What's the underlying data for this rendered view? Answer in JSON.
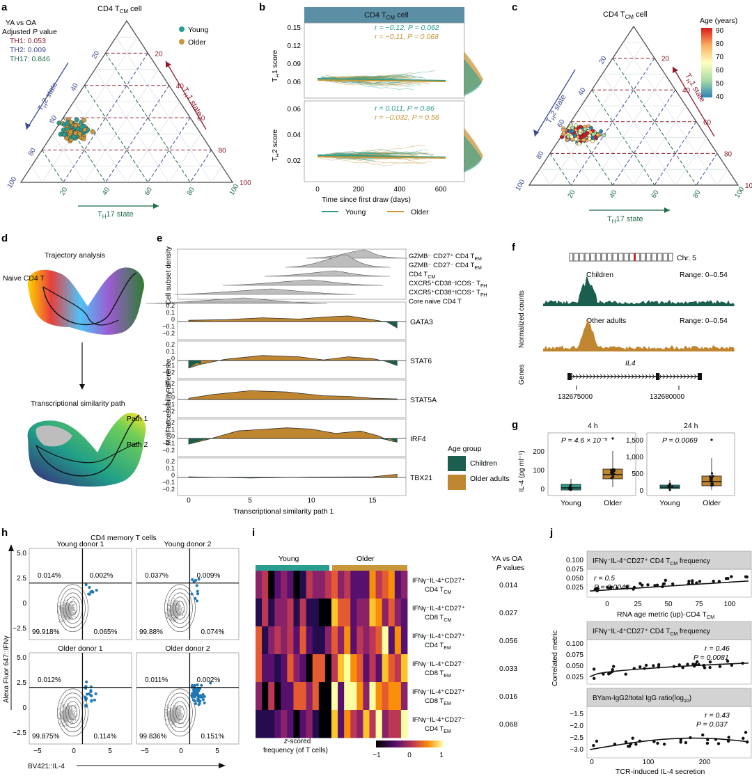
{
  "panel_letters": [
    "a",
    "b",
    "c",
    "d",
    "e",
    "f",
    "g",
    "h",
    "i",
    "j"
  ],
  "colors": {
    "young": "#2a9d8f",
    "older": "#c8973a",
    "th1": "#8b1a2b",
    "th2": "#3b4a8f",
    "th17": "#1f6b4a",
    "children": "#1a5e50",
    "adults": "#c0862f",
    "blue_dot": "#1f77b4",
    "header": "#5b8fa6",
    "strip": "#d3d3d3"
  },
  "a": {
    "title": "CD4 T",
    "title_sub": "CM",
    "title_tail": " cell",
    "stats_title": "YA vs OA",
    "stats_sub": "Adjusted P value",
    "th1": "H1: 0.053",
    "th2": "H2: 0.009",
    "th17": "H17: 0.846",
    "legend": [
      "Young",
      "Older"
    ],
    "th1_axis": [
      "20",
      "40",
      "60",
      "80",
      "100"
    ],
    "th2_axis": [
      "20",
      "40",
      "60",
      "80",
      "100"
    ],
    "th17_axis": [
      "20",
      "40",
      "60",
      "80",
      "100"
    ],
    "th1_label": "T",
    "th1_label_sub": "H",
    "th1_label_tail": "1 state",
    "th2_label": "T",
    "th2_label_sub": "H",
    "th2_label_tail": "2 state",
    "th17_label": "T",
    "th17_label_sub": "H",
    "th17_label_tail": "17 state"
  },
  "b": {
    "header": "CD4 T",
    "header_sub": "CM",
    "header_tail": " cell",
    "y1_label": "T",
    "y1_sub": "H",
    "y1_tail": "1 score",
    "y2_label": "T",
    "y2_sub": "H",
    "y2_tail": "2 score",
    "y1_ticks": [
      "0.15",
      "0.12",
      "0.09",
      "0.06"
    ],
    "y2_ticks": [
      "0.06",
      "0.04",
      "0.02"
    ],
    "x_ticks": [
      "0",
      "200",
      "400",
      "600"
    ],
    "xlabel": "Time since first draw (days)",
    "stats1": [
      "r = −0.12, P = 0.062",
      "r = −0.11, P = 0.068"
    ],
    "stats2": [
      "r = 0.011, P = 0.86",
      "r = −0.032, P = 0.58"
    ],
    "legend": [
      "Young",
      "Older"
    ]
  },
  "c": {
    "title": "CD4 T",
    "title_sub": "CM",
    "title_tail": " cell",
    "legend_title": "Age (years)",
    "legend_ticks": [
      "90",
      "80",
      "70",
      "60",
      "50",
      "40"
    ],
    "th1_label": "T",
    "th1_label_sub": "H",
    "th1_label_tail": "1 state",
    "th2_label": "T",
    "th2_label_sub": "H",
    "th2_label_tail": "2 state",
    "th17_label": "T",
    "th17_label_sub": "H",
    "th17_label_tail": "17 state"
  },
  "d": {
    "top": "Trajectory analysis",
    "naive": "Naive CD4 T",
    "bottom": "Transcriptional similarity path",
    "path1": "Path 1",
    "path2": "Path 2"
  },
  "e": {
    "density_label": "Cell subset density",
    "motif_label": "Motif accessibility difference",
    "subsets": [
      "GZMB⁻ CD27⁺ CD4 T",
      "GZMB⁻ CD27⁻ CD4 T",
      "CD4 T",
      "CXCR5⁺CD38⁻ICOS⁻ T",
      "CXCR5⁺CD38⁺ICOS⁺ T",
      "Core naive CD4 T"
    ],
    "subset_subs": [
      "EM",
      "EM",
      "CM",
      "FH",
      "FH",
      ""
    ],
    "motifs": [
      "GATA3",
      "STAT6",
      "STAT5A",
      "IRF4",
      "TBX21"
    ],
    "y_ticks": [
      "0.2",
      "0.1",
      "0",
      "−0.1",
      "−0.2"
    ],
    "x_ticks": [
      "0",
      "5",
      "10",
      "15"
    ],
    "xlabel": "Transcriptional similarity path 1",
    "legend_title": "Age group",
    "legend": [
      "Children",
      "Older adults"
    ]
  },
  "f": {
    "chr": "Chr. 5",
    "children": "Children",
    "adults": "Other adults",
    "range": "Range: 0–0.54",
    "ylabel": "Normalized counts",
    "genes": "Genes",
    "gene": "IL4",
    "coords": [
      "132675000",
      "132680000"
    ]
  },
  "g": {
    "ylabel": "IL-4 (pg ml⁻¹)",
    "p1": {
      "title": "4 h",
      "pval": "P = 4.6 × 10⁻⁵",
      "ticks": [
        "200",
        "100",
        "0"
      ],
      "cats": [
        "Young",
        "Older"
      ]
    },
    "p2": {
      "title": "24 h",
      "pval": "P = 0.0069",
      "ticks": [
        "1,500",
        "1,000",
        "500",
        "0"
      ],
      "cats": [
        "Young",
        "Older"
      ]
    }
  },
  "h": {
    "title": "CD4 memory T cells",
    "panels": [
      {
        "name": "Young donor 1",
        "q": [
          "0.014%",
          "0.002%",
          "99.918%",
          "0.065%"
        ]
      },
      {
        "name": "Young donor 2",
        "q": [
          "0.037%",
          "0.009%",
          "99.88%",
          "0.074%"
        ]
      },
      {
        "name": "Older donor 1",
        "q": [
          "0.012%",
          "",
          "99.875%",
          "0.114%"
        ]
      },
      {
        "name": "Older donor 2",
        "q": [
          "0.011%",
          "0.002%",
          "99.836%",
          "0.151%"
        ]
      }
    ],
    "y_ticks": [
      "5.0",
      "2.5",
      "0",
      "−2.5"
    ],
    "x_ticks": [
      "−5",
      "0",
      "5"
    ],
    "ylabel": "Alexa Fluor 647::IFNγ",
    "xlabel": "BV421::IL-4"
  },
  "i": {
    "groups": [
      "Young",
      "Older"
    ],
    "pheader": [
      "YA vs OA",
      "P values"
    ],
    "rows": [
      {
        "l1": "IFNγ⁻IL-4⁺CD27⁺",
        "l2": "CD4 T",
        "sub": "CM",
        "p": "0.014"
      },
      {
        "l1": "IFNγ⁻IL-4⁺CD27⁺",
        "l2": "CD8 T",
        "sub": "CM",
        "p": "0.027"
      },
      {
        "l1": "IFNγ⁻IL-4⁺CD27⁺",
        "l2": "CD4 T",
        "sub": "EM",
        "p": "0.056"
      },
      {
        "l1": "IFNγ⁻IL-4⁺CD27⁻",
        "l2": "CD8 T",
        "sub": "EM",
        "p": "0.033"
      },
      {
        "l1": "IFNγ⁻IL-4⁺CD27⁺",
        "l2": "CD8 T",
        "sub": "EM",
        "p": "0.016"
      },
      {
        "l1": "IFNγ⁻IL-4⁺CD27⁻",
        "l2": "CD4 T",
        "sub": "EM",
        "p": "0.068"
      }
    ],
    "legend_title": "z-scored",
    "legend_title2": "frequency (of T cells)",
    "legend_ticks": [
      "−1",
      "0",
      "1"
    ]
  },
  "j": {
    "ylabel": "Correlated metric",
    "p1": {
      "header": "IFNγ⁻IL-4⁺CD27⁺ CD4 T",
      "header_sub": "CM",
      "header_tail": " frequency",
      "r": "r = 0.5",
      "p": "P = 0.0043",
      "y_ticks": [
        "0.100",
        "0.075",
        "0.050",
        "0.025"
      ],
      "x_ticks": [
        "0",
        "25",
        "50",
        "75",
        "100"
      ],
      "xlabel": "RNA age metric (up)-CD4 T",
      "xlabel_sub": "CM"
    },
    "p2": {
      "header": "IFNγ⁻IL-4⁺CD27⁺ CD4 T",
      "header_sub": "CM",
      "header_tail": " frequency",
      "r": "r = 0.46",
      "p": "P = 0.0081",
      "y_ticks": [
        "0.100",
        "0.075",
        "0.050",
        "0.025"
      ]
    },
    "p3": {
      "header": "BYam-IgG2/total IgG ratio(log",
      "header_sub": "10",
      "header_tail": ")",
      "r": "r = 0.43",
      "p": "P = 0.037",
      "y_ticks": [
        "−1.5",
        "−2.0",
        "−2.5",
        "−3.0"
      ],
      "x_ticks": [
        "0",
        "100",
        "200"
      ],
      "xlabel": "TCR-induced IL-4 secretion"
    }
  },
  "chart_data": [
    {
      "type": "line",
      "panel": "b-top",
      "series": [
        {
          "name": "Young",
          "r": -0.12,
          "P": 0.062
        },
        {
          "name": "Older",
          "r": -0.11,
          "P": 0.068
        }
      ],
      "xlabel": "Time since first draw (days)",
      "xlim": [
        0,
        650
      ],
      "ylim": [
        0.03,
        0.16
      ]
    },
    {
      "type": "line",
      "panel": "b-bottom",
      "series": [
        {
          "name": "Young",
          "r": 0.011,
          "P": 0.86
        },
        {
          "name": "Older",
          "r": -0.032,
          "P": 0.58
        }
      ],
      "xlim": [
        0,
        650
      ],
      "ylim": [
        0.0,
        0.065
      ]
    },
    {
      "type": "box",
      "panel": "g-4h",
      "categories": [
        "Young",
        "Older"
      ],
      "medians": [
        20,
        70
      ],
      "q1": [
        10,
        45
      ],
      "q3": [
        30,
        95
      ],
      "ylim": [
        -10,
        270
      ]
    },
    {
      "type": "box",
      "panel": "g-24h",
      "categories": [
        "Young",
        "Older"
      ],
      "medians": [
        100,
        220
      ],
      "q1": [
        60,
        120
      ],
      "q3": [
        150,
        380
      ],
      "ylim": [
        -50,
        1750
      ]
    },
    {
      "type": "scatter",
      "panel": "j",
      "series": [
        {
          "name": "RNA age metric",
          "r": 0.5,
          "P": 0.0043
        },
        {
          "name": "IFN freq",
          "r": 0.46,
          "P": 0.0081
        },
        {
          "name": "BYam ratio",
          "r": 0.43,
          "P": 0.037
        }
      ]
    }
  ]
}
